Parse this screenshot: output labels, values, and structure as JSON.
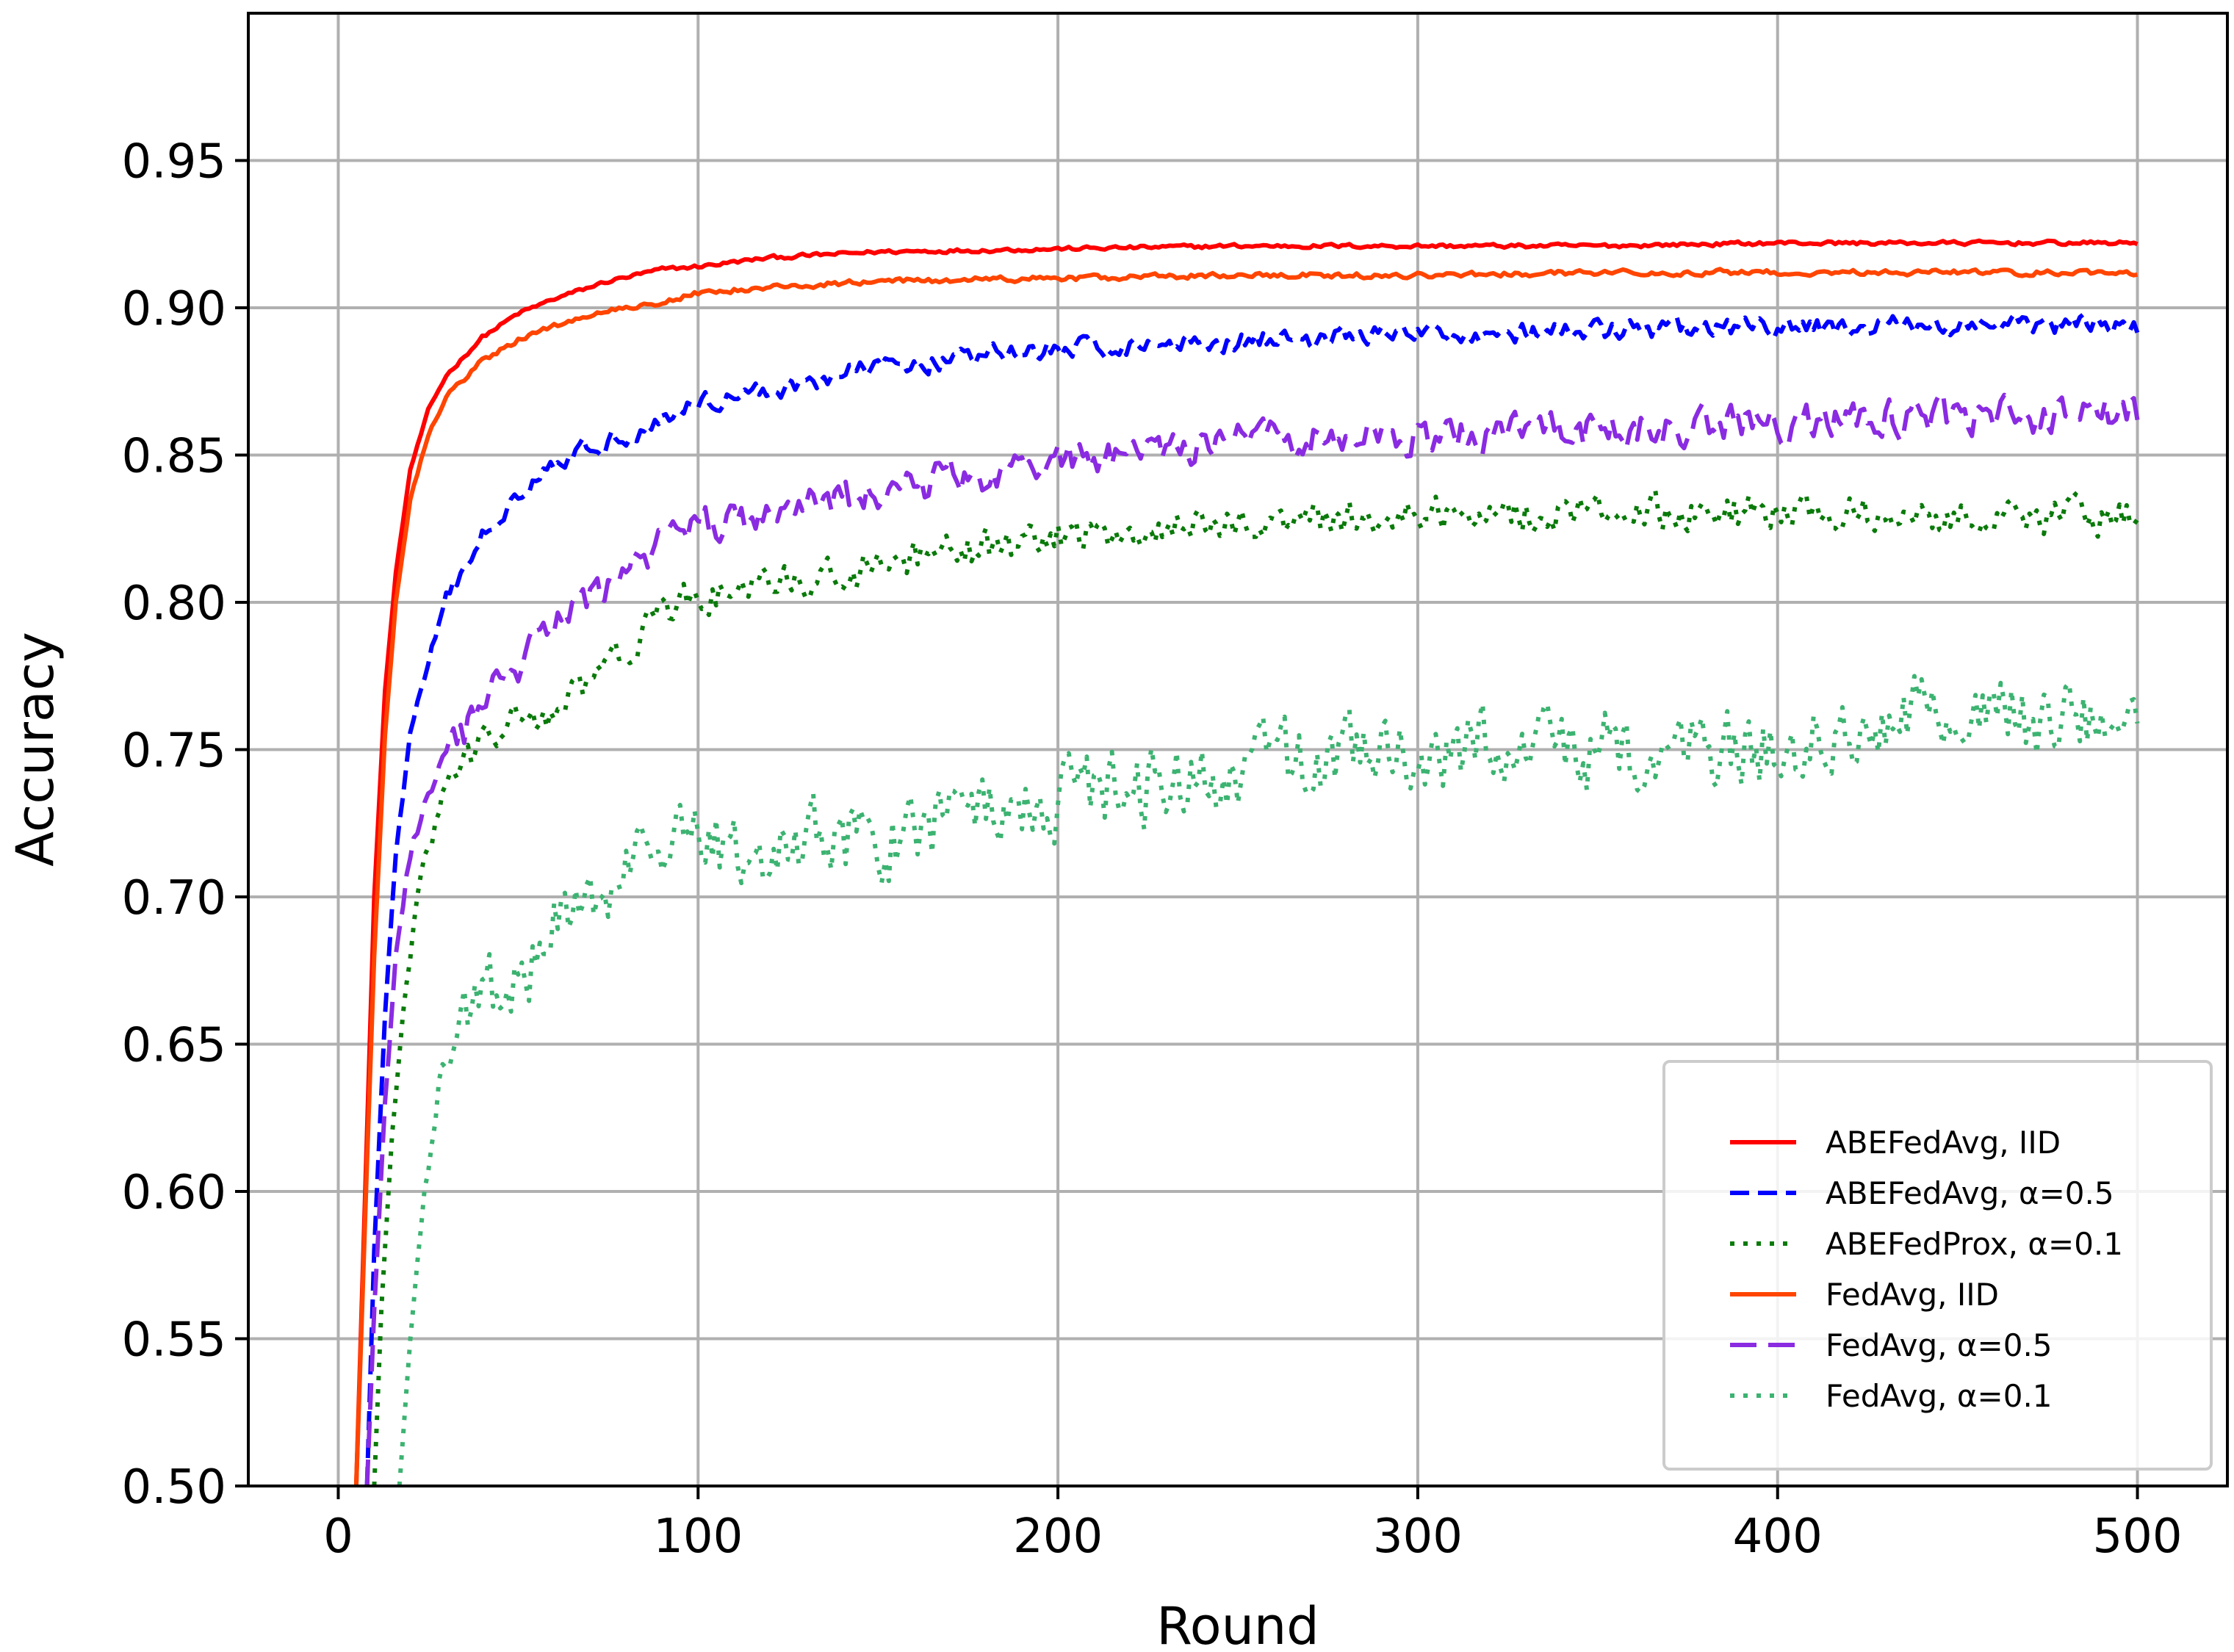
{
  "chart_data": {
    "type": "line",
    "title": "",
    "xlabel": "Round",
    "ylabel": "Accuracy",
    "xlim": [
      -25,
      525
    ],
    "ylim": [
      0.5,
      1.0
    ],
    "xticks": [
      0,
      100,
      200,
      300,
      400,
      500
    ],
    "xtick_labels": [
      "0",
      "100",
      "200",
      "300",
      "400",
      "500"
    ],
    "yticks": [
      0.5,
      0.55,
      0.6,
      0.65,
      0.7,
      0.75,
      0.8,
      0.85,
      0.9,
      0.95
    ],
    "ytick_labels": [
      "0.50",
      "0.55",
      "0.60",
      "0.65",
      "0.70",
      "0.75",
      "0.80",
      "0.85",
      "0.90",
      "0.95"
    ],
    "grid": true,
    "legend_position": "bottom-right",
    "series": [
      {
        "name": "ABEFedAvg, IID",
        "color": "#ff0000",
        "dash": "solid",
        "noise": 0.0006,
        "x": [
          5,
          8,
          10,
          13,
          16,
          20,
          25,
          30,
          40,
          50,
          60,
          75,
          90,
          100,
          120,
          150,
          200,
          250,
          300,
          350,
          400,
          450,
          500
        ],
        "y": [
          0.5,
          0.62,
          0.7,
          0.77,
          0.81,
          0.845,
          0.865,
          0.877,
          0.89,
          0.898,
          0.903,
          0.909,
          0.913,
          0.914,
          0.917,
          0.919,
          0.92,
          0.921,
          0.921,
          0.921,
          0.922,
          0.922,
          0.922
        ]
      },
      {
        "name": "ABEFedAvg, α=0.5",
        "color": "#0000ff",
        "dash": "dashed",
        "noise": 0.003,
        "x": [
          8,
          10,
          13,
          16,
          20,
          25,
          30,
          40,
          50,
          60,
          75,
          90,
          100,
          120,
          150,
          200,
          250,
          300,
          350,
          400,
          450,
          500
        ],
        "y": [
          0.5,
          0.58,
          0.66,
          0.715,
          0.755,
          0.78,
          0.8,
          0.822,
          0.838,
          0.848,
          0.855,
          0.862,
          0.868,
          0.872,
          0.88,
          0.886,
          0.889,
          0.891,
          0.892,
          0.893,
          0.894,
          0.894
        ]
      },
      {
        "name": "ABEFedProx, α=0.1",
        "color": "#0a7a0a",
        "dash": "dotted",
        "noise": 0.0055,
        "x": [
          10,
          12,
          15,
          18,
          22,
          27,
          30,
          40,
          50,
          60,
          70,
          80,
          90,
          100,
          120,
          150,
          200,
          250,
          300,
          350,
          400,
          450,
          500
        ],
        "y": [
          0.5,
          0.56,
          0.62,
          0.66,
          0.7,
          0.725,
          0.738,
          0.752,
          0.76,
          0.762,
          0.772,
          0.785,
          0.795,
          0.802,
          0.805,
          0.812,
          0.822,
          0.827,
          0.83,
          0.831,
          0.83,
          0.83,
          0.83
        ]
      },
      {
        "name": "FedAvg, IID",
        "color": "#ff4500",
        "dash": "solid",
        "noise": 0.0008,
        "x": [
          5,
          8,
          10,
          13,
          16,
          20,
          25,
          30,
          40,
          50,
          60,
          75,
          90,
          100,
          120,
          150,
          200,
          250,
          300,
          350,
          400,
          450,
          500
        ],
        "y": [
          0.5,
          0.61,
          0.68,
          0.755,
          0.8,
          0.835,
          0.857,
          0.87,
          0.882,
          0.889,
          0.894,
          0.899,
          0.902,
          0.905,
          0.907,
          0.909,
          0.91,
          0.911,
          0.911,
          0.912,
          0.912,
          0.912,
          0.912
        ]
      },
      {
        "name": "FedAvg, α=0.5",
        "color": "#8a2be2",
        "dash": "long-dashed",
        "noise": 0.0055,
        "x": [
          8,
          10,
          13,
          16,
          20,
          25,
          30,
          40,
          50,
          60,
          75,
          90,
          100,
          120,
          150,
          200,
          250,
          300,
          350,
          400,
          450,
          500
        ],
        "y": [
          0.5,
          0.56,
          0.63,
          0.68,
          0.715,
          0.735,
          0.745,
          0.765,
          0.778,
          0.792,
          0.806,
          0.82,
          0.826,
          0.83,
          0.838,
          0.848,
          0.855,
          0.857,
          0.858,
          0.861,
          0.863,
          0.864
        ]
      },
      {
        "name": "FedAvg, α=0.1",
        "color": "#3cb371",
        "dash": "dotted",
        "noise": 0.012,
        "x": [
          17,
          20,
          24,
          28,
          35,
          45,
          55,
          65,
          75,
          90,
          100,
          120,
          150,
          180,
          200,
          250,
          300,
          350,
          400,
          440,
          470,
          500
        ],
        "y": [
          0.5,
          0.55,
          0.6,
          0.635,
          0.66,
          0.67,
          0.68,
          0.695,
          0.705,
          0.715,
          0.718,
          0.719,
          0.72,
          0.73,
          0.735,
          0.743,
          0.75,
          0.749,
          0.752,
          0.765,
          0.76,
          0.757
        ]
      }
    ]
  }
}
